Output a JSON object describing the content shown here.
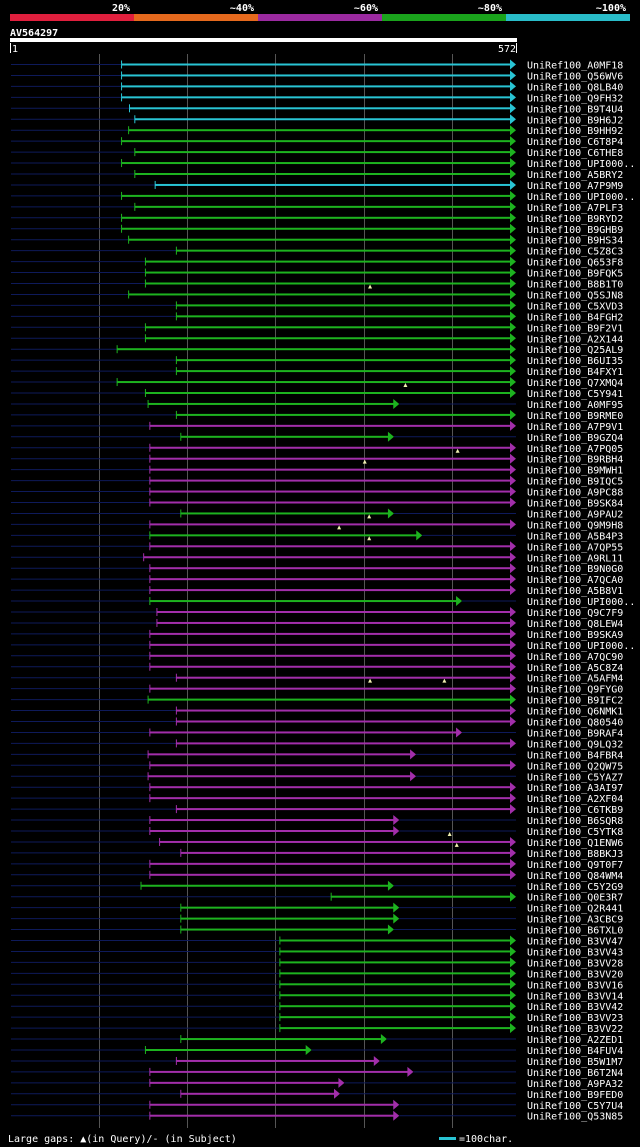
{
  "query": {
    "name": "AV564297",
    "start": "1",
    "end": "572",
    "length": 572
  },
  "identity_scale": [
    {
      "label": "",
      "color": "#e01f3d"
    },
    {
      "label": "20%",
      "color": "#e5691d"
    },
    {
      "label": "~40%",
      "color": "#9b2aa0"
    },
    {
      "label": "~60%",
      "color": "#1aa31c"
    },
    {
      "label": "~80%",
      "color": "#29bcc9"
    },
    {
      "label": "~100%",
      "color": ""
    }
  ],
  "colors": {
    "cyan": "#29c4d4",
    "green": "#1db31f",
    "purple": "#a22eaa",
    "gap": "#0e1a5a",
    "grid": "#555555",
    "query_bar": "#ffffff",
    "gap_mark": "#f0f0b0"
  },
  "footer": {
    "large_gaps_text": "Large gaps: ▲(in Query)/- (in Subject)",
    "scale_text": "=100char."
  },
  "chart_data": {
    "type": "alignment",
    "x_range": [
      1,
      572
    ],
    "rows": [
      {
        "id": "UniRef100_A0MF18",
        "s": 126,
        "e": 572,
        "c": "cyan",
        "a": 1
      },
      {
        "id": "UniRef100_Q56WV6",
        "s": 126,
        "e": 572,
        "c": "cyan",
        "a": 1
      },
      {
        "id": "UniRef100_Q8LB40",
        "s": 126,
        "e": 572,
        "c": "cyan",
        "a": 1
      },
      {
        "id": "UniRef100_Q9FH32",
        "s": 126,
        "e": 572,
        "c": "cyan",
        "a": 1
      },
      {
        "id": "UniRef100_B9T4U4",
        "s": 135,
        "e": 572,
        "c": "cyan",
        "a": 1
      },
      {
        "id": "UniRef100_B9H6J2",
        "s": 141,
        "e": 572,
        "c": "cyan",
        "a": 1
      },
      {
        "id": "UniRef100_B9HH92",
        "s": 134,
        "e": 572,
        "c": "green",
        "a": 1
      },
      {
        "id": "UniRef100_C6T8P4",
        "s": 126,
        "e": 572,
        "c": "green",
        "a": 1
      },
      {
        "id": "UniRef100_C6THE8",
        "s": 141,
        "e": 572,
        "c": "green",
        "a": 1
      },
      {
        "id": "UniRef100_UPI000..",
        "s": 126,
        "e": 572,
        "c": "green",
        "a": 1
      },
      {
        "id": "UniRef100_A5BRY2",
        "s": 141,
        "e": 572,
        "c": "green",
        "a": 1
      },
      {
        "id": "UniRef100_A7P9M9",
        "s": 164,
        "e": 572,
        "c": "cyan",
        "a": 1
      },
      {
        "id": "UniRef100_UPI000..",
        "s": 126,
        "e": 572,
        "c": "green",
        "a": 1
      },
      {
        "id": "UniRef100_A7PLF3",
        "s": 141,
        "e": 572,
        "c": "green",
        "a": 1
      },
      {
        "id": "UniRef100_B9RYD2",
        "s": 126,
        "e": 572,
        "c": "green",
        "a": 1
      },
      {
        "id": "UniRef100_B9GHB9",
        "s": 126,
        "e": 572,
        "c": "green",
        "a": 1
      },
      {
        "id": "UniRef100_B9HS34",
        "s": 134,
        "e": 572,
        "c": "green",
        "a": 1
      },
      {
        "id": "UniRef100_C5Z8C3",
        "s": 188,
        "e": 572,
        "c": "green",
        "a": 1
      },
      {
        "id": "UniRef100_Q653F8",
        "s": 153,
        "e": 572,
        "c": "green",
        "a": 1
      },
      {
        "id": "UniRef100_B9FQK5",
        "s": 153,
        "e": 572,
        "c": "green",
        "a": 1
      },
      {
        "id": "UniRef100_B8B1T0",
        "s": 153,
        "e": 572,
        "c": "green",
        "a": 1
      },
      {
        "id": "UniRef100_Q5SJN8",
        "s": 134,
        "e": 572,
        "c": "green",
        "a": 1,
        "m": [
          {
            "x": 407,
            "t": "tri"
          }
        ]
      },
      {
        "id": "UniRef100_C5XVD3",
        "s": 188,
        "e": 572,
        "c": "green",
        "a": 1
      },
      {
        "id": "UniRef100_B4FGH2",
        "s": 188,
        "e": 572,
        "c": "green",
        "a": 1
      },
      {
        "id": "UniRef100_B9F2V1",
        "s": 153,
        "e": 572,
        "c": "green",
        "a": 1
      },
      {
        "id": "UniRef100_A2X144",
        "s": 153,
        "e": 572,
        "c": "green",
        "a": 1
      },
      {
        "id": "UniRef100_Q25AL9",
        "s": 121,
        "e": 572,
        "c": "green",
        "a": 1
      },
      {
        "id": "UniRef100_B6UI35",
        "s": 188,
        "e": 572,
        "c": "green",
        "a": 1
      },
      {
        "id": "UniRef100_B4FXY1",
        "s": 188,
        "e": 572,
        "c": "green",
        "a": 1
      },
      {
        "id": "UniRef100_Q7XMQ4",
        "s": 121,
        "e": 572,
        "c": "green",
        "a": 1
      },
      {
        "id": "UniRef100_C5Y941",
        "s": 153,
        "e": 572,
        "c": "green",
        "a": 1,
        "m": [
          {
            "x": 447,
            "t": "tri"
          }
        ]
      },
      {
        "id": "UniRef100_A0MF95",
        "s": 156,
        "e": 440,
        "c": "green",
        "a": 1
      },
      {
        "id": "UniRef100_B9RME0",
        "s": 188,
        "e": 572,
        "c": "green",
        "a": 1
      },
      {
        "id": "UniRef100_A7P9V1",
        "s": 158,
        "e": 572,
        "c": "purple",
        "a": 1
      },
      {
        "id": "UniRef100_B9GZQ4",
        "s": 193,
        "e": 434,
        "c": "green",
        "a": 1
      },
      {
        "id": "UniRef100_A7PQ05",
        "s": 158,
        "e": 572,
        "c": "purple",
        "a": 1
      },
      {
        "id": "UniRef100_B9RBH4",
        "s": 158,
        "e": 572,
        "c": "purple",
        "a": 1,
        "m": [
          {
            "x": 506,
            "t": "tri"
          }
        ]
      },
      {
        "id": "UniRef100_B9MWH1",
        "s": 158,
        "e": 572,
        "c": "purple",
        "a": 1,
        "m": [
          {
            "x": 401,
            "t": "tri"
          }
        ]
      },
      {
        "id": "UniRef100_B9IQC5",
        "s": 158,
        "e": 572,
        "c": "purple",
        "a": 1
      },
      {
        "id": "UniRef100_A9PC88",
        "s": 158,
        "e": 572,
        "c": "purple",
        "a": 1
      },
      {
        "id": "UniRef100_B9SK84",
        "s": 158,
        "e": 572,
        "c": "purple",
        "a": 1
      },
      {
        "id": "UniRef100_A9PAU2",
        "s": 193,
        "e": 434,
        "c": "green",
        "a": 1
      },
      {
        "id": "UniRef100_Q9M9H8",
        "s": 158,
        "e": 572,
        "c": "purple",
        "a": 1,
        "m": [
          {
            "x": 406,
            "t": "tri"
          }
        ]
      },
      {
        "id": "UniRef100_A5B4P3",
        "s": 158,
        "e": 466,
        "c": "green",
        "a": 1,
        "m": [
          {
            "x": 372,
            "t": "tri"
          }
        ]
      },
      {
        "id": "UniRef100_A7QP55",
        "s": 158,
        "e": 572,
        "c": "purple",
        "a": 1,
        "m": [
          {
            "x": 406,
            "t": "tri"
          }
        ]
      },
      {
        "id": "UniRef100_A9RL11",
        "s": 151,
        "e": 572,
        "c": "purple",
        "a": 1
      },
      {
        "id": "UniRef100_B9N0G0",
        "s": 158,
        "e": 572,
        "c": "purple",
        "a": 1
      },
      {
        "id": "UniRef100_A7QCA0",
        "s": 158,
        "e": 572,
        "c": "purple",
        "a": 1
      },
      {
        "id": "UniRef100_A5B8V1",
        "s": 158,
        "e": 572,
        "c": "purple",
        "a": 1
      },
      {
        "id": "UniRef100_UPI000..",
        "s": 158,
        "e": 511,
        "c": "green",
        "a": 1
      },
      {
        "id": "UniRef100_Q9C7F9",
        "s": 166,
        "e": 572,
        "c": "purple",
        "a": 1
      },
      {
        "id": "UniRef100_Q8LEW4",
        "s": 166,
        "e": 572,
        "c": "purple",
        "a": 1
      },
      {
        "id": "UniRef100_B9SKA9",
        "s": 158,
        "e": 572,
        "c": "purple",
        "a": 1
      },
      {
        "id": "UniRef100_UPI000..",
        "s": 158,
        "e": 572,
        "c": "purple",
        "a": 1
      },
      {
        "id": "UniRef100_A7QC90",
        "s": 158,
        "e": 572,
        "c": "purple",
        "a": 1
      },
      {
        "id": "UniRef100_A5C8Z4",
        "s": 158,
        "e": 572,
        "c": "purple",
        "a": 1
      },
      {
        "id": "UniRef100_A5AFM4",
        "s": 188,
        "e": 572,
        "c": "purple",
        "a": 1
      },
      {
        "id": "UniRef100_Q9FYG0",
        "s": 158,
        "e": 572,
        "c": "purple",
        "a": 1,
        "m": [
          {
            "x": 407,
            "t": "tri"
          },
          {
            "x": 491,
            "t": "tri"
          }
        ]
      },
      {
        "id": "UniRef100_B9IFC2",
        "s": 156,
        "e": 572,
        "c": "green",
        "a": 1
      },
      {
        "id": "UniRef100_Q6NMK1",
        "s": 188,
        "e": 572,
        "c": "purple",
        "a": 1
      },
      {
        "id": "UniRef100_Q80540",
        "s": 188,
        "e": 572,
        "c": "purple",
        "a": 1
      },
      {
        "id": "UniRef100_B9RAF4",
        "s": 158,
        "e": 511,
        "c": "purple",
        "a": 1
      },
      {
        "id": "UniRef100_Q9LQ32",
        "s": 188,
        "e": 572,
        "c": "purple",
        "a": 1
      },
      {
        "id": "UniRef100_B4FBR4",
        "s": 156,
        "e": 459,
        "c": "purple",
        "a": 1
      },
      {
        "id": "UniRef100_Q2QW75",
        "s": 158,
        "e": 572,
        "c": "purple",
        "a": 1
      },
      {
        "id": "UniRef100_C5YAZ7",
        "s": 156,
        "e": 459,
        "c": "purple",
        "a": 1
      },
      {
        "id": "UniRef100_A3AI97",
        "s": 158,
        "e": 572,
        "c": "purple",
        "a": 1
      },
      {
        "id": "UniRef100_A2XF04",
        "s": 158,
        "e": 572,
        "c": "purple",
        "a": 1
      },
      {
        "id": "UniRef100_C6TKB9",
        "s": 188,
        "e": 572,
        "c": "purple",
        "a": 1
      },
      {
        "id": "UniRef100_B6SQR8",
        "s": 158,
        "e": 440,
        "c": "purple",
        "a": 1
      },
      {
        "id": "UniRef100_C5YTK8",
        "s": 158,
        "e": 440,
        "c": "purple",
        "a": 1
      },
      {
        "id": "UniRef100_Q1ENW6",
        "s": 169,
        "e": 572,
        "c": "purple",
        "a": 1,
        "m": [
          {
            "x": 497,
            "t": "tri"
          }
        ]
      },
      {
        "id": "UniRef100_B8BKJ3",
        "s": 193,
        "e": 572,
        "c": "purple",
        "a": 1,
        "m": [
          {
            "x": 505,
            "t": "tri"
          }
        ]
      },
      {
        "id": "UniRef100_Q9T0F7",
        "s": 158,
        "e": 572,
        "c": "purple",
        "a": 1
      },
      {
        "id": "UniRef100_Q84WM4",
        "s": 158,
        "e": 572,
        "c": "purple",
        "a": 1
      },
      {
        "id": "UniRef100_C5Y2G9",
        "s": 148,
        "e": 434,
        "c": "green",
        "a": 1
      },
      {
        "id": "UniRef100_Q0E3R7",
        "s": 363,
        "e": 572,
        "c": "green",
        "a": 1
      },
      {
        "id": "UniRef100_Q2R441",
        "s": 193,
        "e": 440,
        "c": "green",
        "a": 1
      },
      {
        "id": "UniRef100_A3CBC9",
        "s": 193,
        "e": 440,
        "c": "green",
        "a": 1
      },
      {
        "id": "UniRef100_B6TXL0",
        "s": 193,
        "e": 434,
        "c": "green",
        "a": 1
      },
      {
        "id": "UniRef100_B3VV47",
        "s": 305,
        "e": 572,
        "c": "green",
        "a": 1
      },
      {
        "id": "UniRef100_B3VV43",
        "s": 305,
        "e": 572,
        "c": "green",
        "a": 1
      },
      {
        "id": "UniRef100_B3VV28",
        "s": 305,
        "e": 572,
        "c": "green",
        "a": 1
      },
      {
        "id": "UniRef100_B3VV20",
        "s": 305,
        "e": 572,
        "c": "green",
        "a": 1
      },
      {
        "id": "UniRef100_B3VV16",
        "s": 305,
        "e": 572,
        "c": "green",
        "a": 1
      },
      {
        "id": "UniRef100_B3VV14",
        "s": 305,
        "e": 572,
        "c": "green",
        "a": 1
      },
      {
        "id": "UniRef100_B3VV42",
        "s": 305,
        "e": 572,
        "c": "green",
        "a": 1
      },
      {
        "id": "UniRef100_B3VV23",
        "s": 305,
        "e": 572,
        "c": "green",
        "a": 1
      },
      {
        "id": "UniRef100_B3VV22",
        "s": 305,
        "e": 572,
        "c": "green",
        "a": 1
      },
      {
        "id": "UniRef100_A2ZED1",
        "s": 193,
        "e": 426,
        "c": "green",
        "a": 1
      },
      {
        "id": "UniRef100_B4FUV4",
        "s": 153,
        "e": 341,
        "c": "green",
        "a": 1
      },
      {
        "id": "UniRef100_B5W1M7",
        "s": 188,
        "e": 418,
        "c": "purple",
        "a": 1
      },
      {
        "id": "UniRef100_B6T2N4",
        "s": 158,
        "e": 456,
        "c": "purple",
        "a": 1
      },
      {
        "id": "UniRef100_A9PA32",
        "s": 158,
        "e": 378,
        "c": "purple",
        "a": 1
      },
      {
        "id": "UniRef100_B9FED0",
        "s": 193,
        "e": 373,
        "c": "purple",
        "a": 1
      },
      {
        "id": "UniRef100_C5Y7U4",
        "s": 158,
        "e": 440,
        "c": "purple",
        "a": 1
      },
      {
        "id": "UniRef100_Q53N85",
        "s": 158,
        "e": 440,
        "c": "purple",
        "a": 1
      }
    ]
  }
}
